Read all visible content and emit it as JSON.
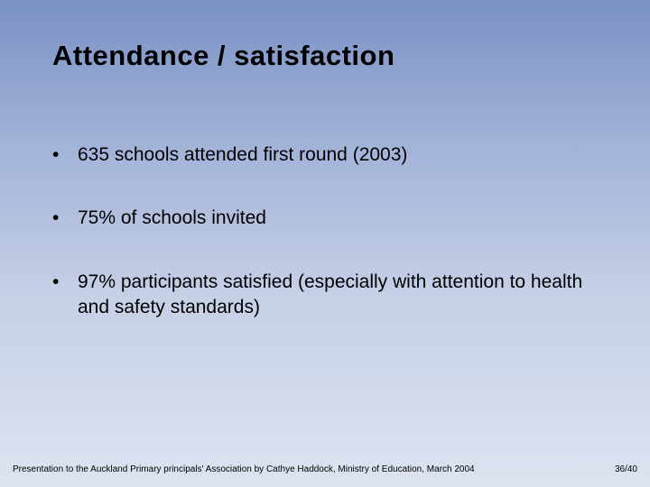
{
  "slide": {
    "background_gradient": [
      "#7a91c4",
      "#a2b3d8",
      "#c5cfe6",
      "#dde3f0"
    ],
    "title": "Attendance / satisfaction",
    "title_fontsize": 31,
    "title_fontweight": "bold",
    "title_color": "#000000",
    "bullets": [
      {
        "mark": "•",
        "text": "635 schools attended first round (2003)"
      },
      {
        "mark": "•",
        "text": "75% of schools invited"
      },
      {
        "mark": "•",
        "text": "97% participants satisfied (especially with attention to health and safety standards)"
      }
    ],
    "bullet_fontsize": 21,
    "bullet_spacing": 42,
    "footer": {
      "left": "Presentation to the Auckland Primary principals' Association by Cathye Haddock, Ministry of Education, March 2004",
      "right": "36/40",
      "fontsize": 10
    }
  }
}
